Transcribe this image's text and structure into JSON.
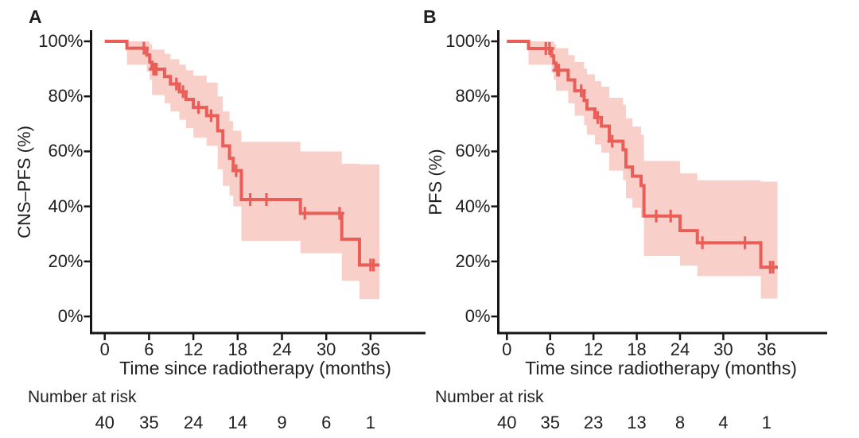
{
  "figure": {
    "background": "#ffffff",
    "line_color": "#ea5e58",
    "band_color": "#f9cfca",
    "axis_color": "#161616",
    "text_color": "#1f1f1f"
  },
  "chart_data": [
    {
      "type": "line",
      "variant": "kaplan-meier-step",
      "panel_label": "A",
      "ylabel": "CNS–PFS (%)",
      "xlabel": "Time since radiotherapy (months)",
      "yticks": [
        100,
        80,
        60,
        40,
        20,
        0
      ],
      "ytick_labels": [
        "100%",
        "80%",
        "60%",
        "40%",
        "20%",
        "0%"
      ],
      "xticks": [
        0,
        6,
        12,
        18,
        24,
        30,
        36
      ],
      "xlim": [
        0,
        39
      ],
      "ylim": [
        0,
        100
      ],
      "grid": false,
      "legend": "none",
      "risk_title": "Number at risk",
      "risk_times": [
        0,
        6,
        12,
        18,
        24,
        30,
        36
      ],
      "number_at_risk": [
        40,
        35,
        24,
        14,
        9,
        6,
        1
      ],
      "steps": [
        [
          0,
          100
        ],
        [
          3.0,
          97.5
        ],
        [
          5.7,
          95.0
        ],
        [
          6.1,
          92.4
        ],
        [
          6.4,
          89.9
        ],
        [
          8.1,
          87.2
        ],
        [
          8.9,
          84.5
        ],
        [
          10.1,
          81.7
        ],
        [
          11.0,
          78.9
        ],
        [
          12.0,
          76.0
        ],
        [
          13.8,
          73.0
        ],
        [
          15.3,
          67.5
        ],
        [
          16.0,
          62.0
        ],
        [
          16.9,
          57.5
        ],
        [
          17.4,
          53.0
        ],
        [
          18.5,
          42.5
        ],
        [
          26.5,
          37.5
        ],
        [
          32.1,
          28.1
        ],
        [
          34.5,
          18.7
        ],
        [
          37.2,
          18.7
        ]
      ],
      "censors": [
        [
          5.3,
          97.5
        ],
        [
          6.6,
          89.9
        ],
        [
          6.8,
          89.9
        ],
        [
          7.0,
          89.9
        ],
        [
          9.7,
          84.5
        ],
        [
          10.6,
          81.7
        ],
        [
          12.7,
          76.0
        ],
        [
          14.4,
          73.0
        ],
        [
          17.8,
          53.0
        ],
        [
          19.7,
          42.5
        ],
        [
          21.9,
          42.5
        ],
        [
          27.1,
          37.5
        ],
        [
          31.8,
          37.5
        ],
        [
          36.0,
          18.7
        ],
        [
          36.4,
          18.7
        ]
      ],
      "band": [
        [
          3.0,
          100,
          91.5
        ],
        [
          5.7,
          100,
          89.0
        ],
        [
          6.1,
          99.0,
          86.0
        ],
        [
          6.4,
          97.0,
          80.5
        ],
        [
          8.1,
          95.5,
          77.5
        ],
        [
          8.9,
          93.5,
          74.5
        ],
        [
          10.1,
          91.5,
          71.5
        ],
        [
          11.0,
          89.5,
          68.5
        ],
        [
          12.0,
          87.5,
          65.0
        ],
        [
          13.8,
          85.0,
          62.0
        ],
        [
          15.3,
          80.0,
          53.5
        ],
        [
          16.0,
          74.5,
          47.5
        ],
        [
          16.9,
          71.0,
          44.0
        ],
        [
          17.4,
          67.5,
          40.0
        ],
        [
          18.5,
          63.5,
          27.5
        ],
        [
          26.5,
          60.0,
          23.0
        ],
        [
          32.1,
          55.5,
          13.0
        ],
        [
          34.5,
          55.3,
          6.3
        ],
        [
          37.2,
          55.3,
          6.3
        ]
      ]
    },
    {
      "type": "line",
      "variant": "kaplan-meier-step",
      "panel_label": "B",
      "ylabel": "PFS (%)",
      "xlabel": "Time since radiotherapy (months)",
      "yticks": [
        100,
        80,
        60,
        40,
        20,
        0
      ],
      "ytick_labels": [
        "100%",
        "80%",
        "60%",
        "40%",
        "20%",
        "0%"
      ],
      "xticks": [
        0,
        6,
        12,
        18,
        24,
        30,
        36
      ],
      "xlim": [
        0,
        39
      ],
      "ylim": [
        0,
        100
      ],
      "grid": false,
      "legend": "none",
      "risk_title": "Number at risk",
      "risk_times": [
        0,
        6,
        12,
        18,
        24,
        30,
        36
      ],
      "number_at_risk": [
        40,
        35,
        23,
        13,
        8,
        4,
        1
      ],
      "steps": [
        [
          0,
          100
        ],
        [
          3.0,
          97.4
        ],
        [
          6.2,
          94.7
        ],
        [
          6.5,
          92.1
        ],
        [
          6.8,
          89.5
        ],
        [
          8.5,
          86.0
        ],
        [
          9.4,
          82.0
        ],
        [
          10.7,
          78.5
        ],
        [
          11.1,
          75.4
        ],
        [
          12.2,
          72.3
        ],
        [
          13.1,
          69.2
        ],
        [
          14.2,
          63.7
        ],
        [
          16.1,
          60.6
        ],
        [
          16.5,
          54.3
        ],
        [
          17.4,
          51.0
        ],
        [
          18.6,
          47.6
        ],
        [
          19.0,
          36.5
        ],
        [
          24.0,
          31.2
        ],
        [
          26.4,
          26.8
        ],
        [
          35.2,
          17.9
        ],
        [
          37.5,
          17.9
        ]
      ],
      "censors": [
        [
          5.4,
          97.4
        ],
        [
          5.9,
          97.4
        ],
        [
          7.0,
          89.5
        ],
        [
          7.2,
          89.5
        ],
        [
          10.3,
          82.0
        ],
        [
          12.6,
          72.3
        ],
        [
          14.6,
          63.7
        ],
        [
          20.7,
          36.5
        ],
        [
          22.7,
          36.5
        ],
        [
          27.1,
          26.8
        ],
        [
          33.0,
          26.8
        ],
        [
          36.5,
          17.9
        ],
        [
          36.9,
          17.9
        ]
      ],
      "band": [
        [
          3.0,
          100,
          91.5
        ],
        [
          6.2,
          100,
          88.5
        ],
        [
          6.5,
          99.0,
          86.0
        ],
        [
          6.8,
          97.5,
          82.0
        ],
        [
          8.5,
          95.0,
          77.5
        ],
        [
          9.4,
          92.5,
          73.0
        ],
        [
          10.7,
          90.0,
          69.5
        ],
        [
          11.1,
          88.0,
          66.0
        ],
        [
          12.2,
          85.5,
          62.5
        ],
        [
          13.1,
          83.5,
          59.5
        ],
        [
          14.2,
          79.5,
          53.0
        ],
        [
          16.1,
          77.0,
          49.5
        ],
        [
          16.5,
          72.0,
          43.0
        ],
        [
          17.4,
          69.0,
          39.5
        ],
        [
          18.6,
          66.0,
          36.0
        ],
        [
          19.0,
          56.5,
          22.0
        ],
        [
          24.0,
          52.0,
          18.5
        ],
        [
          26.4,
          49.5,
          14.7
        ],
        [
          35.2,
          49.0,
          6.5
        ],
        [
          37.5,
          49.0,
          6.5
        ]
      ]
    }
  ]
}
